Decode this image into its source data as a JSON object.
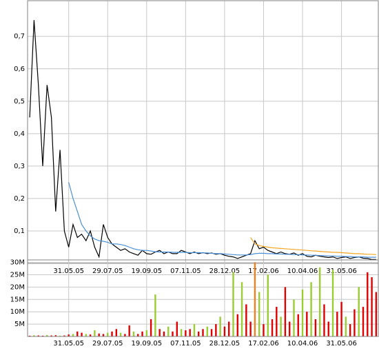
{
  "chart_data": [
    {
      "type": "line",
      "categories": [
        null,
        null,
        null,
        null,
        null,
        null,
        null,
        null,
        null,
        "31.05.05",
        null,
        null,
        null,
        null,
        null,
        null,
        null,
        null,
        "29.07.05",
        null,
        null,
        null,
        null,
        null,
        null,
        null,
        null,
        "19.09.05",
        null,
        null,
        null,
        null,
        null,
        null,
        null,
        null,
        "07.11.05",
        null,
        null,
        null,
        null,
        null,
        null,
        null,
        null,
        "28.12.05",
        null,
        null,
        null,
        null,
        null,
        null,
        null,
        null,
        "17.02.06",
        null,
        null,
        null,
        null,
        null,
        null,
        null,
        null,
        "10.04.06",
        null,
        null,
        null,
        null,
        null,
        null,
        null,
        null,
        "31.05.06",
        null,
        null,
        null,
        null,
        null,
        null,
        null,
        null
      ],
      "series": [
        {
          "color": "#000000",
          "values": [
            0.45,
            0.75,
            0.55,
            0.3,
            0.55,
            0.45,
            0.16,
            0.35,
            0.1,
            0.05,
            0.12,
            0.08,
            0.09,
            0.07,
            0.1,
            0.05,
            0.02,
            0.12,
            0.08,
            0.06,
            0.05,
            0.04,
            0.045,
            0.035,
            0.03,
            0.025,
            0.04,
            0.03,
            0.028,
            0.035,
            0.04,
            0.03,
            0.035,
            0.03,
            0.03,
            0.04,
            0.035,
            0.03,
            0.035,
            0.03,
            0.033,
            0.03,
            0.032,
            0.028,
            0.03,
            0.025,
            0.022,
            0.02,
            0.015,
            0.02,
            0.025,
            0.03,
            0.07,
            0.045,
            0.05,
            0.04,
            0.035,
            0.03,
            0.035,
            0.03,
            0.028,
            0.032,
            0.025,
            0.03,
            0.022,
            0.02,
            0.025,
            0.022,
            0.02,
            0.018,
            0.02,
            0.015,
            0.018,
            0.02,
            0.015,
            0.018,
            0.02,
            0.016,
            0.015,
            0.012,
            0.012
          ]
        },
        {
          "color": "#4a90d9",
          "values": [
            null,
            null,
            null,
            null,
            null,
            null,
            null,
            null,
            null,
            0.25,
            0.2,
            0.16,
            0.12,
            0.1,
            0.085,
            0.075,
            0.07,
            0.068,
            0.065,
            0.06,
            0.06,
            0.058,
            0.055,
            0.05,
            0.045,
            0.042,
            0.04,
            0.04,
            0.038,
            0.036,
            0.035,
            0.035,
            0.035,
            0.034,
            0.034,
            0.034,
            0.034,
            0.033,
            0.033,
            0.033,
            0.032,
            0.032,
            0.031,
            0.03,
            0.03,
            0.029,
            0.028,
            0.027,
            0.026,
            0.026,
            0.026,
            0.027,
            0.03,
            0.031,
            0.031,
            0.03,
            0.03,
            0.029,
            0.029,
            0.028,
            0.028,
            0.027,
            0.027,
            0.026,
            0.026,
            0.025,
            0.025,
            0.024,
            0.024,
            0.023,
            0.023,
            0.022,
            0.022,
            0.021,
            0.021,
            0.02,
            0.02,
            0.02,
            0.019,
            0.019,
            0.019
          ]
        },
        {
          "color": "#f5a623",
          "values": [
            null,
            null,
            null,
            null,
            null,
            null,
            null,
            null,
            null,
            null,
            null,
            null,
            null,
            null,
            null,
            null,
            null,
            null,
            null,
            null,
            null,
            null,
            null,
            null,
            null,
            null,
            null,
            null,
            null,
            null,
            null,
            null,
            null,
            null,
            null,
            null,
            null,
            null,
            null,
            null,
            null,
            null,
            null,
            null,
            null,
            null,
            null,
            null,
            null,
            null,
            null,
            0.08,
            0.06,
            0.055,
            0.052,
            0.05,
            0.048,
            0.047,
            0.046,
            0.045,
            0.044,
            0.043,
            0.042,
            0.041,
            0.04,
            0.039,
            0.038,
            0.037,
            0.036,
            0.035,
            0.034,
            0.034,
            0.033,
            0.032,
            0.031,
            0.03,
            0.03,
            0.029,
            0.028,
            0.028,
            0.027
          ]
        }
      ],
      "ylim": [
        0,
        0.81
      ],
      "yticks": [
        {
          "value": 0.1,
          "label": "0,1"
        },
        {
          "value": 0.2,
          "label": "0,2"
        },
        {
          "value": 0.3,
          "label": "0,3"
        },
        {
          "value": 0.4,
          "label": "0,4"
        },
        {
          "value": 0.5,
          "label": "0,5"
        },
        {
          "value": 0.6,
          "label": "0,6"
        },
        {
          "value": 0.7,
          "label": "0,7"
        }
      ],
      "grid": true
    },
    {
      "type": "bar",
      "categories": [
        null,
        null,
        null,
        null,
        null,
        null,
        null,
        null,
        null,
        "31.05.05",
        null,
        null,
        null,
        null,
        null,
        null,
        null,
        null,
        "29.07.05",
        null,
        null,
        null,
        null,
        null,
        null,
        null,
        null,
        "19.09.05",
        null,
        null,
        null,
        null,
        null,
        null,
        null,
        null,
        "07.11.05",
        null,
        null,
        null,
        null,
        null,
        null,
        null,
        null,
        "28.12.05",
        null,
        null,
        null,
        null,
        null,
        null,
        null,
        null,
        "17.02.06",
        null,
        null,
        null,
        null,
        null,
        null,
        null,
        null,
        "10.04.06",
        null,
        null,
        null,
        null,
        null,
        null,
        null,
        null,
        "31.05.06",
        null,
        null,
        null,
        null,
        null,
        null,
        null,
        null
      ],
      "values": [
        300000,
        500000,
        400000,
        300000,
        600000,
        400000,
        500000,
        300000,
        400000,
        800000,
        1000000,
        2000000,
        1500000,
        1000000,
        800000,
        2500000,
        1200000,
        1000000,
        1500000,
        2000000,
        3000000,
        1500000,
        1000000,
        4500000,
        2000000,
        1000000,
        2000000,
        2500000,
        7000000,
        17000000,
        3000000,
        2000000,
        4000000,
        2000000,
        6000000,
        3000000,
        2500000,
        3000000,
        5000000,
        2000000,
        3000000,
        4000000,
        3000000,
        5000000,
        8000000,
        4000000,
        6000000,
        26000000,
        9000000,
        22000000,
        13000000,
        6000000,
        30000000,
        18000000,
        5000000,
        25000000,
        7000000,
        12000000,
        8000000,
        20000000,
        6000000,
        15000000,
        9000000,
        19000000,
        10000000,
        22000000,
        7000000,
        28000000,
        13000000,
        6000000,
        27000000,
        10000000,
        14000000,
        8000000,
        5000000,
        11000000,
        20000000,
        12000000,
        26000000,
        24000000,
        18000000
      ],
      "colors": [
        "#e00000",
        "#9acd32",
        "#e00000",
        "#e00000",
        "#9acd32",
        "#e00000",
        "#e00000",
        "#9acd32",
        "#e00000",
        "#e00000",
        "#9acd32",
        "#e00000",
        "#e00000",
        "#9acd32",
        "#e00000",
        "#9acd32",
        "#e00000",
        "#e00000",
        "#9acd32",
        "#e00000",
        "#e00000",
        "#9acd32",
        "#e00000",
        "#e00000",
        "#9acd32",
        "#e00000",
        "#e00000",
        "#9acd32",
        "#e00000",
        "#9acd32",
        "#e00000",
        "#e00000",
        "#9acd32",
        "#e00000",
        "#e00000",
        "#9acd32",
        "#e00000",
        "#e00000",
        "#9acd32",
        "#e00000",
        "#e00000",
        "#9acd32",
        "#e00000",
        "#e00000",
        "#9acd32",
        "#e00000",
        "#e00000",
        "#9acd32",
        "#e00000",
        "#9acd32",
        "#e00000",
        "#e00000",
        "#f08020",
        "#9acd32",
        "#e00000",
        "#9acd32",
        "#e00000",
        "#e00000",
        "#9acd32",
        "#e00000",
        "#e00000",
        "#9acd32",
        "#e00000",
        "#9acd32",
        "#e00000",
        "#9acd32",
        "#e00000",
        "#9acd32",
        "#e00000",
        "#e00000",
        "#9acd32",
        "#e00000",
        "#e00000",
        "#9acd32",
        "#e00000",
        "#e00000",
        "#9acd32",
        "#e00000",
        "#e00000",
        "#e00000",
        "#e00000"
      ],
      "ylim": [
        0,
        31000000
      ],
      "yticks": [
        {
          "value": 5000000,
          "label": "5M"
        },
        {
          "value": 10000000,
          "label": "10M"
        },
        {
          "value": 15000000,
          "label": "15M"
        },
        {
          "value": 20000000,
          "label": "20M"
        },
        {
          "value": 25000000,
          "label": "25M"
        },
        {
          "value": 30000000,
          "label": "30M"
        }
      ],
      "grid": true
    }
  ]
}
